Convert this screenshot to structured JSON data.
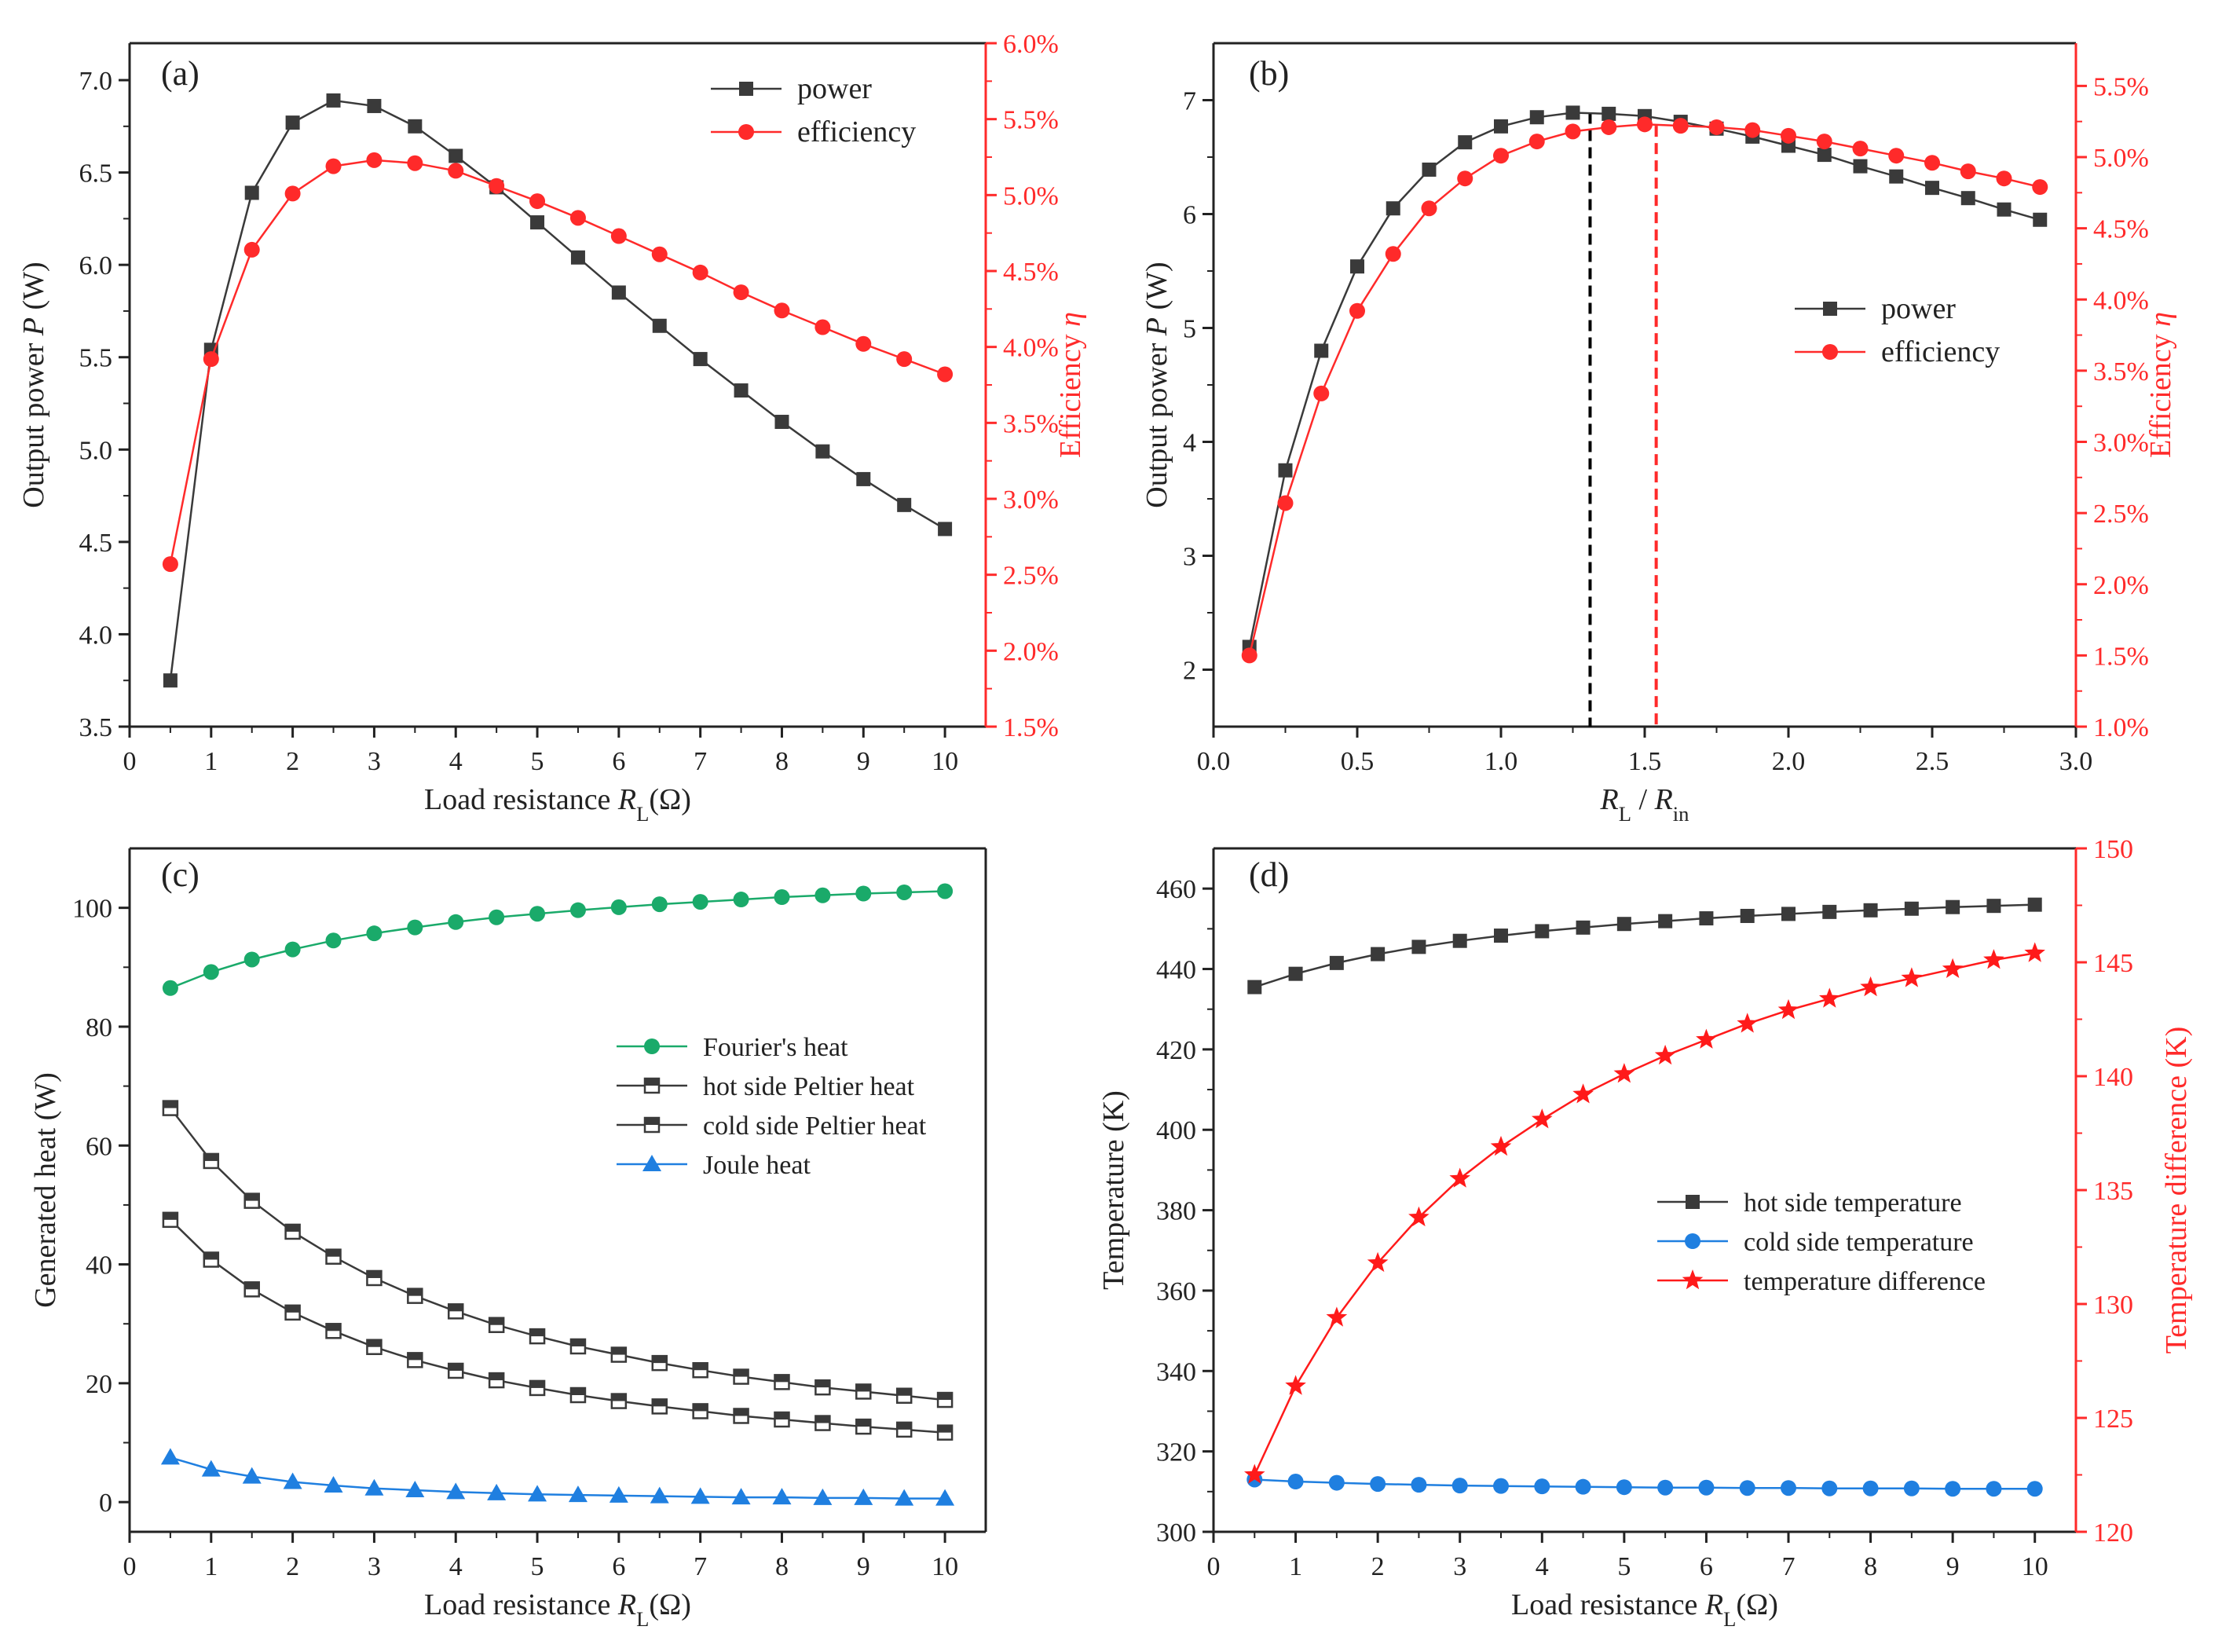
{
  "colors": {
    "power": "#3a3a3a",
    "efficiency": "#ff2a2a",
    "fourier": "#1aaa6a",
    "joule": "#1f7fe0",
    "cold_temp": "#1f7fe0",
    "temp_diff": "#ff1a1a",
    "axis": "#222222",
    "red_axis": "#ff2a2a"
  },
  "chart_data": [
    {
      "id": "a",
      "type": "line",
      "panel_label": "(a)",
      "xlabel": "Load resistance R_L(Ω)",
      "ylabel": "Output power P (W)",
      "ylabel_right": "Efficiency η",
      "xlim": [
        0,
        10.5
      ],
      "ylim": [
        3.5,
        7.2
      ],
      "ylim_right": [
        1.5,
        6.0
      ],
      "xticks": [
        0,
        1,
        2,
        3,
        4,
        5,
        6,
        7,
        8,
        9,
        10
      ],
      "yticks": [
        3.5,
        4.0,
        4.5,
        5.0,
        5.5,
        6.0,
        6.5,
        7.0
      ],
      "yticks_right": [
        "1.5%",
        "2.0%",
        "2.5%",
        "3.0%",
        "3.5%",
        "4.0%",
        "4.5%",
        "5.0%",
        "5.5%",
        "6.0%"
      ],
      "legend": [
        "power",
        "efficiency"
      ],
      "series": [
        {
          "name": "power",
          "axis": "left",
          "marker": "square",
          "x": [
            0.5,
            1.0,
            1.5,
            2.0,
            2.5,
            3.0,
            3.5,
            4.0,
            4.5,
            5.0,
            5.5,
            6.0,
            6.5,
            7.0,
            7.5,
            8.0,
            8.5,
            9.0,
            9.5,
            10.0
          ],
          "values": [
            3.75,
            5.54,
            6.39,
            6.77,
            6.89,
            6.86,
            6.75,
            6.59,
            6.42,
            6.23,
            6.04,
            5.85,
            5.67,
            5.49,
            5.32,
            5.15,
            4.99,
            4.84,
            4.7,
            4.57
          ]
        },
        {
          "name": "efficiency",
          "axis": "right",
          "marker": "circle",
          "x": [
            0.5,
            1.0,
            1.5,
            2.0,
            2.5,
            3.0,
            3.5,
            4.0,
            4.5,
            5.0,
            5.5,
            6.0,
            6.5,
            7.0,
            7.5,
            8.0,
            8.5,
            9.0,
            9.5,
            10.0
          ],
          "values": [
            2.57,
            3.92,
            4.64,
            5.01,
            5.19,
            5.23,
            5.21,
            5.16,
            5.06,
            4.96,
            4.85,
            4.73,
            4.61,
            4.49,
            4.36,
            4.24,
            4.13,
            4.02,
            3.92,
            3.82
          ]
        }
      ]
    },
    {
      "id": "b",
      "type": "line",
      "panel_label": "(b)",
      "xlabel": "R_L / R_in",
      "ylabel": "Output power P (W)",
      "ylabel_right": "Efficiency η",
      "xlim": [
        0,
        3.0
      ],
      "ylim": [
        1.5,
        7.5
      ],
      "ylim_right": [
        1.0,
        5.8
      ],
      "xticks": [
        0.0,
        0.5,
        1.0,
        1.5,
        2.0,
        2.5,
        3.0
      ],
      "xtick_labels": [
        "0.0",
        "0.5",
        "1.0",
        "1.5",
        "2.0",
        "2.5",
        "3.0"
      ],
      "yticks": [
        2,
        3,
        4,
        5,
        6,
        7
      ],
      "yticks_right": [
        "1.0%",
        "1.5%",
        "2.0%",
        "2.5%",
        "3.0%",
        "3.5%",
        "4.0%",
        "4.5%",
        "5.0%",
        "5.5%"
      ],
      "legend": [
        "power",
        "efficiency"
      ],
      "vlines": [
        {
          "x": 1.31,
          "color": "black"
        },
        {
          "x": 1.54,
          "color": "red"
        }
      ],
      "series": [
        {
          "name": "power",
          "axis": "left",
          "marker": "square",
          "x": [
            0.125,
            0.25,
            0.375,
            0.5,
            0.625,
            0.75,
            0.875,
            1.0,
            1.125,
            1.25,
            1.375,
            1.5,
            1.625,
            1.75,
            1.875,
            2.0,
            2.125,
            2.25,
            2.375,
            2.5,
            2.625,
            2.75,
            2.875
          ],
          "values": [
            2.2,
            3.75,
            4.8,
            5.54,
            6.05,
            6.39,
            6.63,
            6.77,
            6.85,
            6.89,
            6.88,
            6.86,
            6.81,
            6.75,
            6.68,
            6.6,
            6.52,
            6.42,
            6.33,
            6.23,
            6.14,
            6.04,
            5.95
          ]
        },
        {
          "name": "efficiency",
          "axis": "right",
          "marker": "circle",
          "x": [
            0.125,
            0.25,
            0.375,
            0.5,
            0.625,
            0.75,
            0.875,
            1.0,
            1.125,
            1.25,
            1.375,
            1.5,
            1.625,
            1.75,
            1.875,
            2.0,
            2.125,
            2.25,
            2.375,
            2.5,
            2.625,
            2.75,
            2.875
          ],
          "values": [
            1.5,
            2.57,
            3.34,
            3.92,
            4.32,
            4.64,
            4.85,
            5.01,
            5.11,
            5.18,
            5.21,
            5.23,
            5.22,
            5.21,
            5.19,
            5.15,
            5.11,
            5.06,
            5.01,
            4.96,
            4.9,
            4.85,
            4.79
          ]
        }
      ]
    },
    {
      "id": "c",
      "type": "line",
      "panel_label": "(c)",
      "xlabel": "Load resistance R_L(Ω)",
      "ylabel": "Generated heat (W)",
      "xlim": [
        0,
        10.5
      ],
      "ylim": [
        -5,
        110
      ],
      "xticks": [
        0,
        1,
        2,
        3,
        4,
        5,
        6,
        7,
        8,
        9,
        10
      ],
      "yticks": [
        0,
        20,
        40,
        60,
        80,
        100
      ],
      "legend": [
        "Fourier's heat",
        "hot side Peltier heat",
        "cold side Peltier heat",
        "Joule heat"
      ],
      "series": [
        {
          "name": "Fourier's heat",
          "marker": "circle",
          "x": [
            0.5,
            1.0,
            1.5,
            2.0,
            2.5,
            3.0,
            3.5,
            4.0,
            4.5,
            5.0,
            5.5,
            6.0,
            6.5,
            7.0,
            7.5,
            8.0,
            8.5,
            9.0,
            9.5,
            10.0
          ],
          "values": [
            86.5,
            89.2,
            91.3,
            93.0,
            94.5,
            95.7,
            96.7,
            97.6,
            98.4,
            99.0,
            99.6,
            100.1,
            100.6,
            101.0,
            101.4,
            101.8,
            102.1,
            102.4,
            102.6,
            102.8
          ]
        },
        {
          "name": "hot side Peltier heat",
          "marker": "half-square",
          "x": [
            0.5,
            1.0,
            1.5,
            2.0,
            2.5,
            3.0,
            3.5,
            4.0,
            4.5,
            5.0,
            5.5,
            6.0,
            6.5,
            7.0,
            7.5,
            8.0,
            8.5,
            9.0,
            9.5,
            10.0
          ],
          "values": [
            66.3,
            57.4,
            50.7,
            45.5,
            41.3,
            37.7,
            34.7,
            32.1,
            29.8,
            27.9,
            26.2,
            24.8,
            23.4,
            22.2,
            21.1,
            20.2,
            19.3,
            18.6,
            17.9,
            17.2
          ]
        },
        {
          "name": "cold side Peltier heat",
          "marker": "half-square",
          "x": [
            0.5,
            1.0,
            1.5,
            2.0,
            2.5,
            3.0,
            3.5,
            4.0,
            4.5,
            5.0,
            5.5,
            6.0,
            6.5,
            7.0,
            7.5,
            8.0,
            8.5,
            9.0,
            9.5,
            10.0
          ],
          "values": [
            47.5,
            40.8,
            35.8,
            31.9,
            28.8,
            26.1,
            23.9,
            22.1,
            20.5,
            19.2,
            18.0,
            17.0,
            16.1,
            15.3,
            14.5,
            13.9,
            13.3,
            12.7,
            12.2,
            11.7
          ]
        },
        {
          "name": "Joule heat",
          "marker": "triangle",
          "x": [
            0.5,
            1.0,
            1.5,
            2.0,
            2.5,
            3.0,
            3.5,
            4.0,
            4.5,
            5.0,
            5.5,
            6.0,
            6.5,
            7.0,
            7.5,
            8.0,
            8.5,
            9.0,
            9.5,
            10.0
          ],
          "values": [
            7.5,
            5.5,
            4.3,
            3.4,
            2.8,
            2.3,
            2.0,
            1.7,
            1.5,
            1.3,
            1.2,
            1.1,
            1.0,
            0.9,
            0.8,
            0.8,
            0.7,
            0.7,
            0.6,
            0.6
          ]
        }
      ]
    },
    {
      "id": "d",
      "type": "line",
      "panel_label": "(d)",
      "xlabel": "Load resistance R_L(Ω)",
      "ylabel": "Temperature (K)",
      "ylabel_right": "Temperature difference (K)",
      "xlim": [
        0,
        10.5
      ],
      "ylim": [
        300,
        470
      ],
      "ylim_right": [
        120,
        150
      ],
      "xticks": [
        0,
        1,
        2,
        3,
        4,
        5,
        6,
        7,
        8,
        9,
        10
      ],
      "yticks": [
        300,
        320,
        340,
        360,
        380,
        400,
        420,
        440,
        460
      ],
      "yticks_right": [
        120,
        125,
        130,
        135,
        140,
        145,
        150
      ],
      "legend": [
        "hot side temperature",
        "cold side temperature",
        "temperature difference"
      ],
      "series": [
        {
          "name": "hot side temperature",
          "axis": "left",
          "marker": "square",
          "x": [
            0.5,
            1.0,
            1.5,
            2.0,
            2.5,
            3.0,
            3.5,
            4.0,
            4.5,
            5.0,
            5.5,
            6.0,
            6.5,
            7.0,
            7.5,
            8.0,
            8.5,
            9.0,
            9.5,
            10.0
          ],
          "values": [
            435.5,
            438.8,
            441.5,
            443.7,
            445.5,
            447.0,
            448.3,
            449.4,
            450.3,
            451.2,
            451.9,
            452.6,
            453.2,
            453.7,
            454.2,
            454.6,
            455.0,
            455.4,
            455.7,
            456.0
          ]
        },
        {
          "name": "cold side temperature",
          "axis": "left",
          "marker": "circle",
          "x": [
            0.5,
            1.0,
            1.5,
            2.0,
            2.5,
            3.0,
            3.5,
            4.0,
            4.5,
            5.0,
            5.5,
            6.0,
            6.5,
            7.0,
            7.5,
            8.0,
            8.5,
            9.0,
            9.5,
            10.0
          ],
          "values": [
            313.0,
            312.5,
            312.2,
            311.9,
            311.7,
            311.5,
            311.4,
            311.3,
            311.2,
            311.1,
            311.0,
            311.0,
            310.9,
            310.9,
            310.8,
            310.8,
            310.8,
            310.7,
            310.7,
            310.7
          ]
        },
        {
          "name": "temperature difference",
          "axis": "right",
          "marker": "star",
          "x": [
            0.5,
            1.0,
            1.5,
            2.0,
            2.5,
            3.0,
            3.5,
            4.0,
            4.5,
            5.0,
            5.5,
            6.0,
            6.5,
            7.0,
            7.5,
            8.0,
            8.5,
            9.0,
            9.5,
            10.0
          ],
          "values": [
            122.5,
            126.4,
            129.4,
            131.8,
            133.8,
            135.5,
            136.9,
            138.1,
            139.2,
            140.1,
            140.9,
            141.6,
            142.3,
            142.9,
            143.4,
            143.9,
            144.3,
            144.7,
            145.1,
            145.4
          ]
        }
      ]
    }
  ]
}
